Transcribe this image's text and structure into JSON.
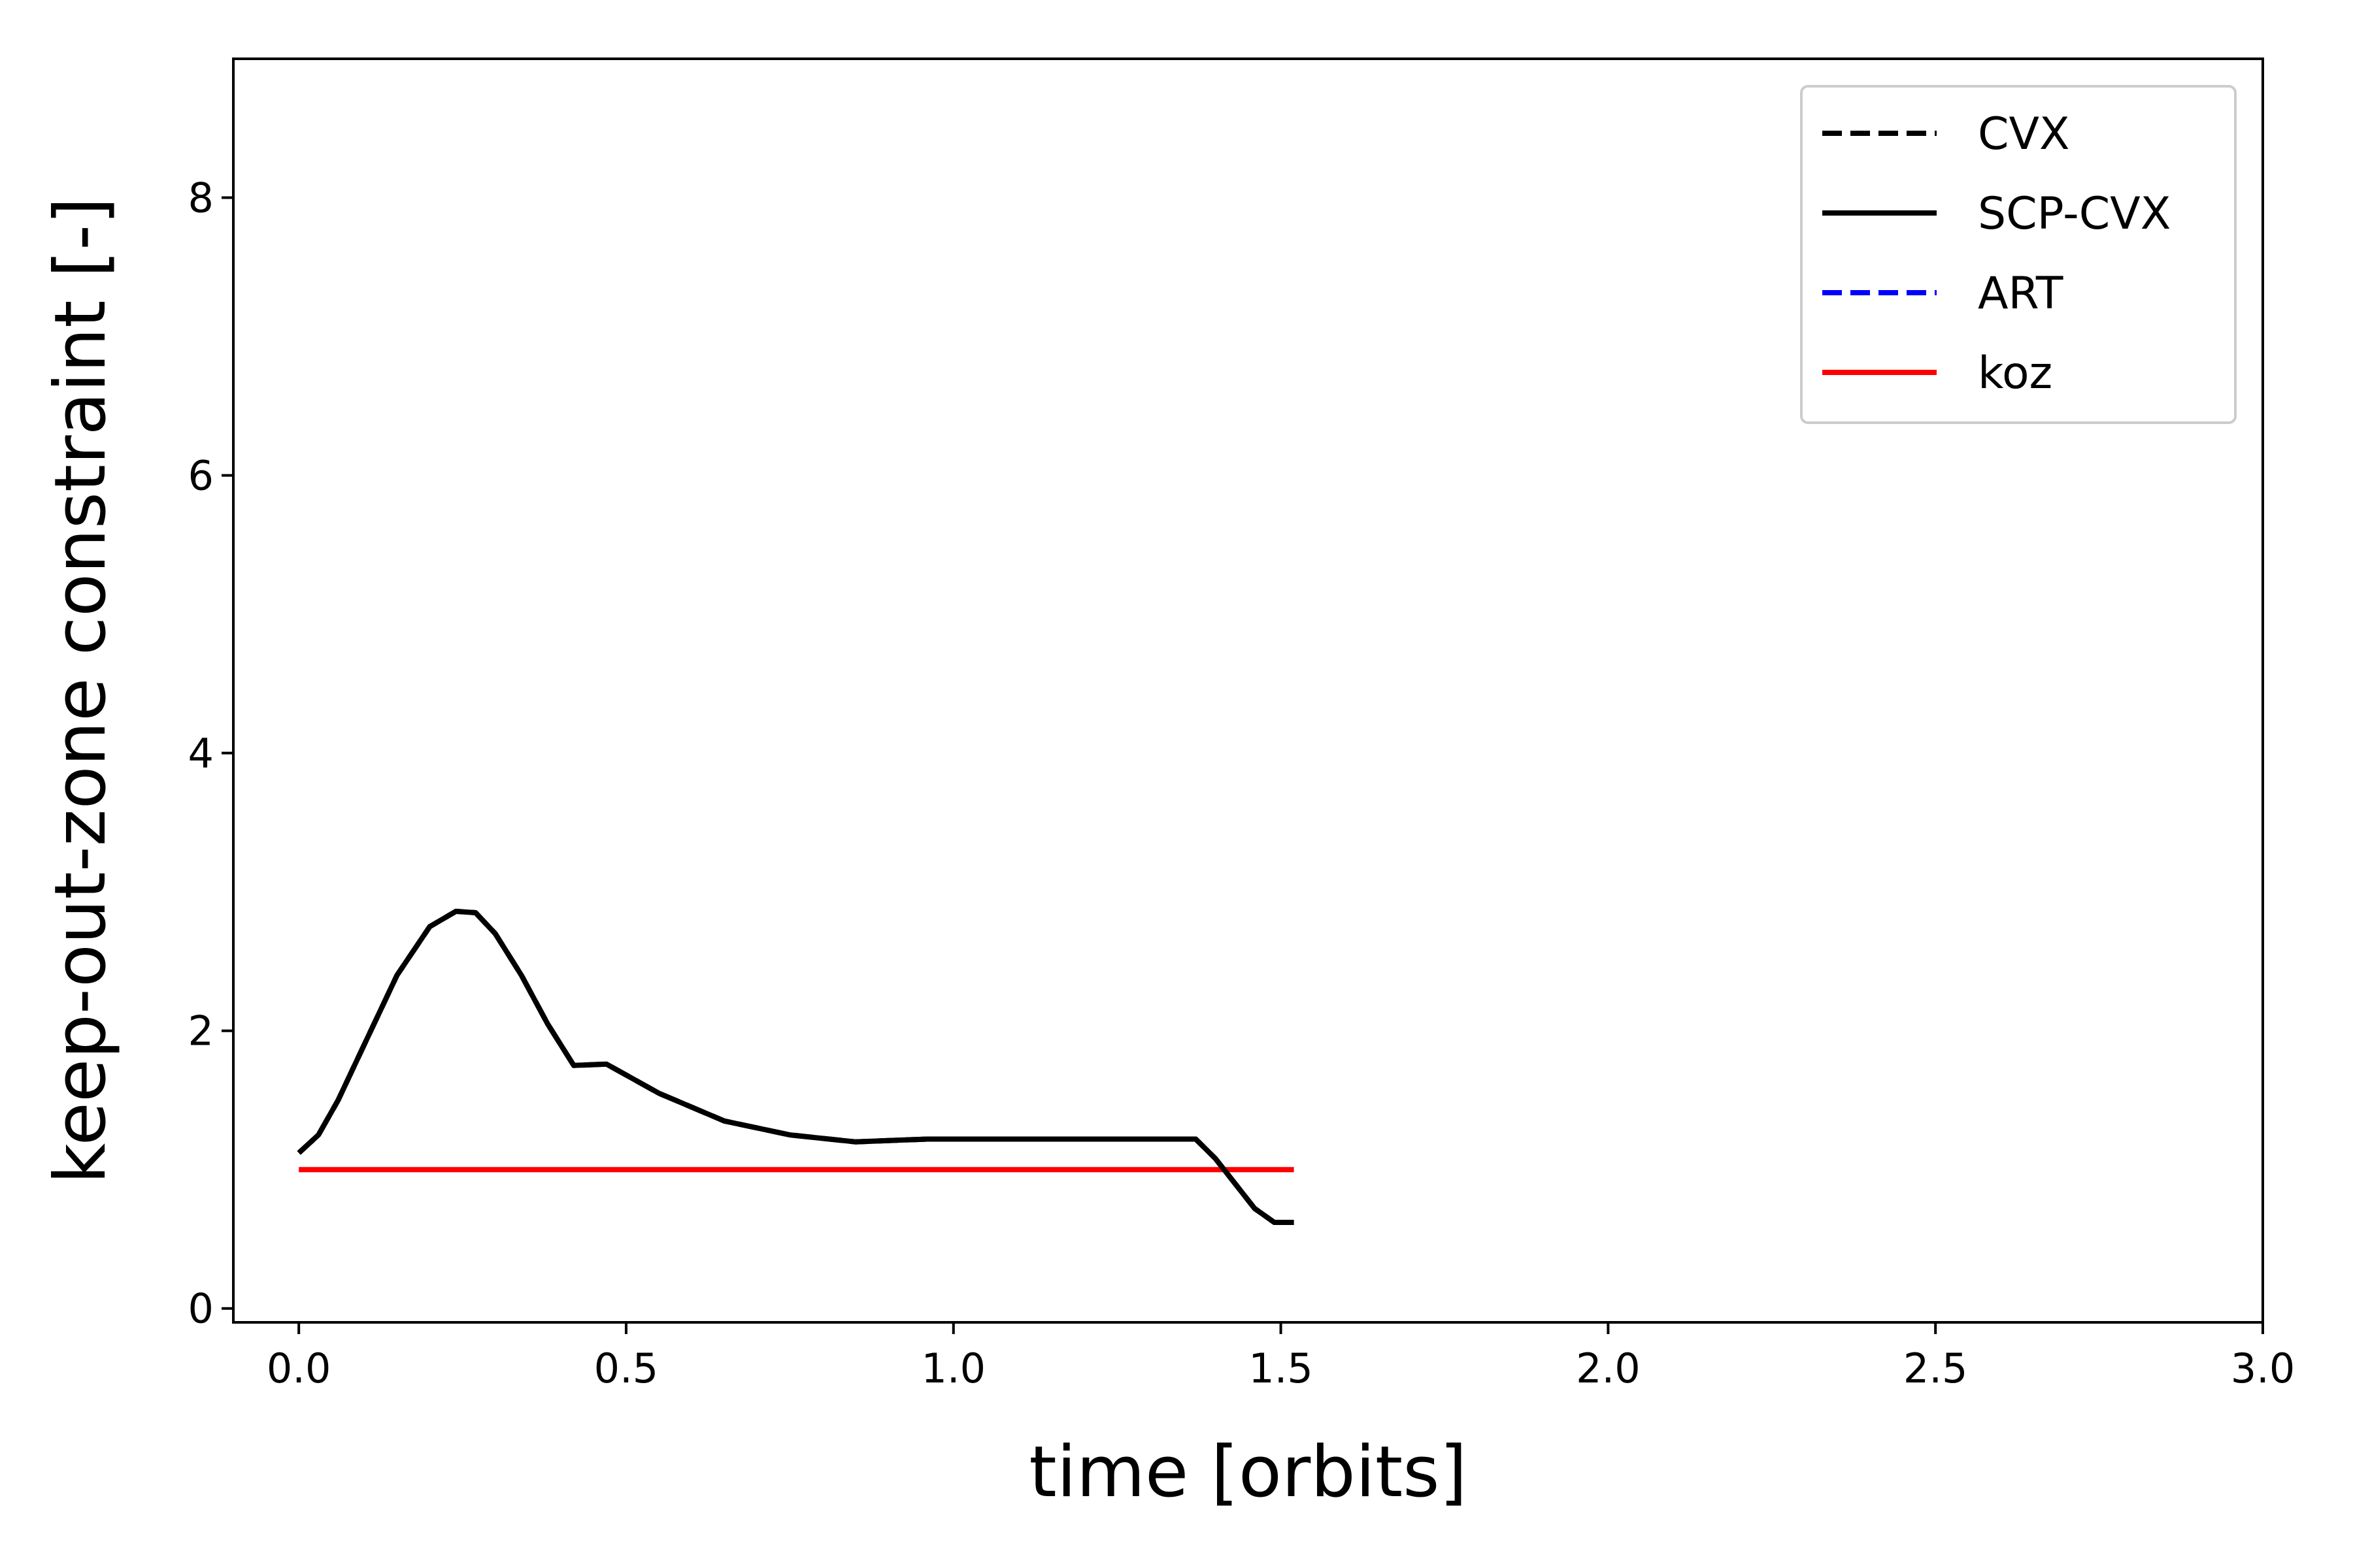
{
  "chart_data": {
    "type": "line",
    "title": "",
    "xlabel": "time [orbits]",
    "ylabel": "keep-out-zone constraint [-]",
    "xlim": [
      -0.1,
      3.0
    ],
    "ylim": [
      -0.1,
      9.0
    ],
    "xticks": [
      0.0,
      0.5,
      1.0,
      1.5,
      2.0,
      2.5,
      3.0
    ],
    "xtick_labels": [
      "0.0",
      "0.5",
      "1.0",
      "1.5",
      "2.0",
      "2.5",
      "3.0"
    ],
    "yticks": [
      0,
      2,
      4,
      6,
      8
    ],
    "ytick_labels": [
      "0",
      "2",
      "4",
      "6",
      "8"
    ],
    "grid": false,
    "legend_position": "top-right",
    "series": [
      {
        "name": "CVX",
        "color": "#000000",
        "style": "dashed",
        "x": [
          0.0,
          0.03,
          0.06,
          0.1,
          0.15,
          0.2,
          0.24,
          0.27,
          0.3,
          0.34,
          0.38,
          0.42,
          0.47,
          0.55,
          0.65,
          0.75,
          0.85,
          0.96,
          1.1,
          1.2,
          1.3,
          1.37,
          1.4,
          1.43,
          1.46,
          1.49,
          1.52
        ],
        "y": [
          1.12,
          1.25,
          1.5,
          1.9,
          2.4,
          2.75,
          2.86,
          2.85,
          2.7,
          2.4,
          2.05,
          1.75,
          1.76,
          1.55,
          1.35,
          1.25,
          1.2,
          1.22,
          1.22,
          1.22,
          1.22,
          1.22,
          1.08,
          0.9,
          0.72,
          0.62,
          0.62
        ]
      },
      {
        "name": "SCP-CVX",
        "color": "#000000",
        "style": "solid",
        "x": [
          0.0,
          0.03,
          0.06,
          0.1,
          0.15,
          0.2,
          0.24,
          0.27,
          0.3,
          0.34,
          0.38,
          0.42,
          0.47,
          0.55,
          0.65,
          0.75,
          0.85,
          0.96,
          1.1,
          1.2,
          1.3,
          1.37,
          1.4,
          1.43,
          1.46,
          1.49,
          1.52
        ],
        "y": [
          1.12,
          1.25,
          1.5,
          1.9,
          2.4,
          2.75,
          2.86,
          2.85,
          2.7,
          2.4,
          2.05,
          1.75,
          1.76,
          1.55,
          1.35,
          1.25,
          1.2,
          1.22,
          1.22,
          1.22,
          1.22,
          1.22,
          1.08,
          0.9,
          0.72,
          0.62,
          0.62
        ]
      },
      {
        "name": "ART",
        "color": "#0000ff",
        "style": "dashed",
        "x": [],
        "y": []
      },
      {
        "name": "koz",
        "color": "#ff0000",
        "style": "solid",
        "x": [
          0.0,
          1.52
        ],
        "y": [
          1.0,
          1.0
        ]
      }
    ]
  }
}
